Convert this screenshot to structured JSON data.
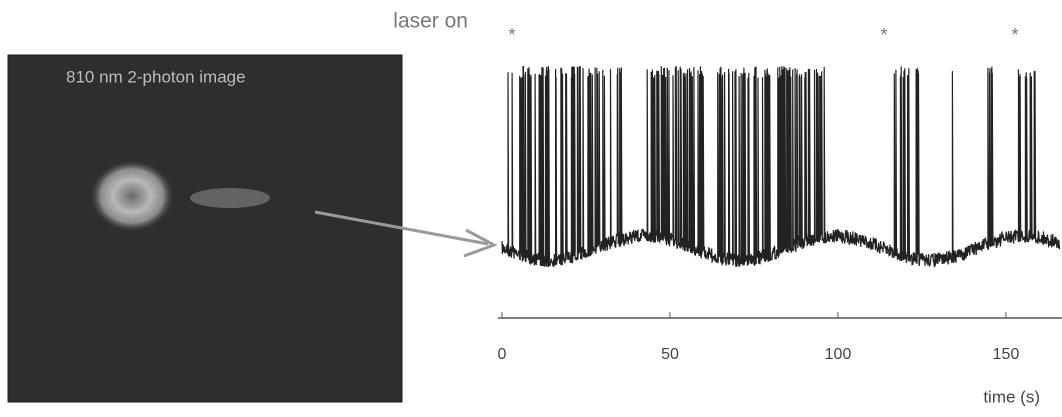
{
  "figure": {
    "image": {
      "label": "810 nm 2-photon image"
    },
    "trace": {
      "annotation": "laser on",
      "markers": [
        "*",
        "*",
        "*"
      ],
      "x_axis": {
        "xticks": [
          0,
          50,
          100,
          150
        ],
        "label": "time (s)"
      }
    }
  }
}
